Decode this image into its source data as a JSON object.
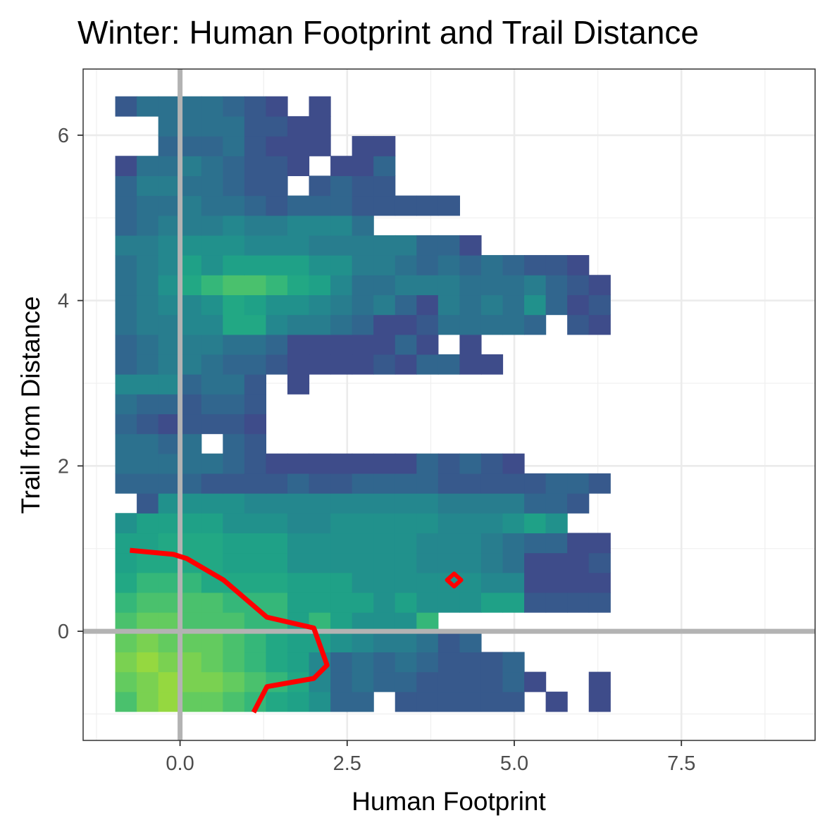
{
  "chart_data": {
    "type": "heatmap",
    "title": "Winter: Human Footprint and Trail Distance",
    "xlabel": "Human Footprint",
    "ylabel": "Trail from Distance",
    "xlim": [
      -1.45,
      9.5
    ],
    "ylim": [
      -1.32,
      6.8
    ],
    "x_ticks": [
      0.0,
      2.5,
      5.0,
      7.5
    ],
    "x_tick_labels": [
      "0.0",
      "2.5",
      "5.0",
      "7.5"
    ],
    "y_ticks": [
      -1,
      0,
      1,
      2,
      3,
      4,
      5,
      6
    ],
    "y_tick_labels": [
      "",
      "0",
      "",
      "2",
      "",
      "4",
      "",
      "6"
    ],
    "grid": true,
    "reference_lines": {
      "x": 0,
      "y": 0,
      "color": "#b3b3b3"
    },
    "bins": {
      "x0": -0.97,
      "dx": 0.322,
      "y0": -0.97,
      "dy": 0.24,
      "palette": [
        "#443a83",
        "#3e4c8a",
        "#37598c",
        "#31668e",
        "#2c718e",
        "#287d8e",
        "#24878e",
        "#21918c",
        "#1fa187",
        "#22a884",
        "#35b779",
        "#4ac16d",
        "#63cb5f",
        "#7ad151",
        "#95d840"
      ],
      "rows": [
        "nnnnnnnnnnnnnnnnnnnnnnnnnnnnnnn",
        "nnnnnnnnnnnnnnnnnnnnnnnnnnnnnnn",
        "nnnn..nn.nnnnnnnnnnnnnnnnnnnnnnn",
        "..nnnnnnnnnnnnnnnnnnnnnnnnnnnn",
        "nnnnnnnnnnnnnnnnnnnnnnnnnnnnn"
      ]
    },
    "density_grid": [
      [
        11,
        13,
        14,
        12,
        12,
        11,
        10,
        9,
        8,
        7,
        3,
        3,
        -1,
        2,
        2,
        2,
        2,
        2,
        2,
        -1,
        1,
        -1,
        1
      ],
      [
        12,
        13,
        14,
        13,
        13,
        12,
        11,
        10,
        9,
        6,
        3,
        4,
        3,
        3,
        2,
        2,
        2,
        2,
        3,
        1,
        -1,
        -1,
        1
      ],
      [
        13,
        14,
        13,
        13,
        12,
        11,
        10,
        9,
        8,
        6,
        3,
        4,
        3,
        4,
        3,
        2,
        2,
        2,
        3,
        -1,
        -1,
        -1,
        -1
      ],
      [
        12,
        13,
        12,
        12,
        12,
        11,
        10,
        9,
        8,
        8,
        7,
        6,
        5,
        5,
        4,
        2,
        3,
        -1,
        -1,
        -1,
        -1,
        -1,
        -1
      ],
      [
        11,
        12,
        12,
        11,
        11,
        11,
        10,
        10,
        8,
        10,
        8,
        7,
        7,
        7,
        10,
        -1,
        -1,
        -1,
        -1,
        -1,
        -1,
        -1,
        -1
      ],
      [
        10,
        11,
        11,
        11,
        11,
        10,
        10,
        10,
        8,
        8,
        8,
        8,
        7,
        8,
        7,
        7,
        7,
        8,
        8,
        2,
        2,
        2,
        2
      ],
      [
        9,
        10,
        10,
        10,
        9,
        9,
        9,
        9,
        8,
        8,
        8,
        7,
        7,
        7,
        7,
        7,
        7,
        6,
        6,
        1,
        1,
        1,
        1
      ],
      [
        8,
        9,
        9,
        9,
        9,
        8,
        8,
        8,
        7,
        7,
        7,
        7,
        7,
        7,
        6,
        6,
        6,
        5,
        4,
        1,
        1,
        1,
        2
      ],
      [
        8,
        8,
        9,
        9,
        9,
        8,
        8,
        8,
        7,
        7,
        7,
        7,
        7,
        7,
        6,
        6,
        6,
        5,
        4,
        3,
        3,
        1,
        1
      ],
      [
        7,
        8,
        8,
        8,
        8,
        7,
        7,
        7,
        6,
        6,
        7,
        7,
        7,
        7,
        7,
        6,
        6,
        6,
        7,
        8,
        7,
        -1,
        -1
      ],
      [
        -1,
        2,
        7,
        7,
        7,
        7,
        6,
        6,
        6,
        6,
        6,
        6,
        6,
        6,
        6,
        5,
        5,
        5,
        5,
        3,
        3,
        2,
        -1
      ],
      [
        3,
        3,
        3,
        3,
        2,
        2,
        2,
        2,
        3,
        2,
        2,
        3,
        3,
        3,
        3,
        2,
        2,
        2,
        2,
        2,
        3,
        3,
        2
      ],
      [
        4,
        4,
        4,
        4,
        4,
        3,
        2,
        1,
        1,
        1,
        1,
        1,
        1,
        1,
        3,
        2,
        3,
        2,
        1,
        -1,
        -1,
        -1,
        -1
      ],
      [
        4,
        4,
        3,
        4,
        -1,
        3,
        2,
        -1,
        -1,
        -1,
        -1,
        -1,
        -1,
        -1,
        -1,
        -1,
        -1,
        -1,
        -1,
        -1,
        -1,
        -1,
        -1
      ],
      [
        3,
        2,
        1,
        2,
        2,
        2,
        1,
        -1,
        -1,
        -1,
        -1,
        -1,
        -1,
        -1,
        -1,
        -1,
        -1,
        -1,
        -1,
        -1,
        -1,
        -1,
        -1
      ],
      [
        4,
        3,
        3,
        2,
        3,
        3,
        2,
        -1,
        -1,
        -1,
        -1,
        -1,
        -1,
        -1,
        -1,
        -1,
        -1,
        -1,
        -1,
        -1,
        -1,
        -1,
        -1
      ],
      [
        6,
        6,
        6,
        3,
        4,
        4,
        2,
        -1,
        1,
        -1,
        -1,
        -1,
        -1,
        -1,
        -1,
        -1,
        -1,
        -1,
        -1,
        -1,
        -1,
        -1,
        -1
      ],
      [
        3,
        4,
        5,
        5,
        4,
        3,
        3,
        2,
        1,
        1,
        1,
        1,
        2,
        1,
        3,
        3,
        1,
        1,
        -1,
        -1,
        -1,
        -1,
        -1
      ],
      [
        3,
        4,
        5,
        5,
        5,
        4,
        4,
        3,
        1,
        1,
        1,
        1,
        1,
        3,
        1,
        -1,
        1,
        -1,
        -1,
        -1,
        -1,
        -1,
        -1
      ],
      [
        4,
        5,
        5,
        6,
        6,
        9,
        9,
        6,
        5,
        5,
        4,
        3,
        1,
        1,
        2,
        4,
        4,
        4,
        4,
        3,
        -1,
        2,
        1
      ],
      [
        4,
        5,
        6,
        6,
        7,
        9,
        8,
        7,
        7,
        6,
        5,
        4,
        5,
        3,
        1,
        5,
        4,
        5,
        4,
        7,
        3,
        1,
        2
      ],
      [
        4,
        5,
        7,
        9,
        10,
        11,
        11,
        10,
        9,
        8,
        6,
        4,
        4,
        5,
        5,
        5,
        4,
        4,
        4,
        5,
        3,
        2,
        1
      ],
      [
        4,
        5,
        6,
        8,
        7,
        8,
        8,
        8,
        8,
        7,
        7,
        5,
        5,
        4,
        3,
        4,
        3,
        4,
        3,
        2,
        2,
        1,
        -1
      ],
      [
        5,
        5,
        6,
        7,
        7,
        7,
        6,
        6,
        6,
        5,
        5,
        5,
        5,
        5,
        3,
        3,
        1,
        -1,
        -1,
        -1,
        -1,
        -1,
        -1
      ],
      [
        3,
        4,
        5,
        5,
        5,
        6,
        5,
        5,
        6,
        6,
        6,
        4,
        -1,
        -1,
        -1,
        -1,
        -1,
        -1,
        -1,
        -1,
        -1,
        -1,
        -1
      ],
      [
        3,
        4,
        4,
        5,
        4,
        4,
        3,
        2,
        3,
        3,
        3,
        2,
        2,
        2,
        2,
        2,
        -1,
        -1,
        -1,
        -1,
        -1,
        -1,
        -1
      ],
      [
        3,
        5,
        5,
        4,
        4,
        3,
        2,
        2,
        -1,
        2,
        3,
        2,
        2,
        -1,
        -1,
        -1,
        -1,
        -1,
        -1,
        -1,
        -1,
        -1,
        -1
      ],
      [
        1,
        4,
        4,
        5,
        4,
        3,
        2,
        2,
        1,
        -1,
        1,
        1,
        3,
        -1,
        -1,
        -1,
        -1,
        -1,
        -1,
        -1,
        -1,
        -1,
        -1
      ],
      [
        -1,
        -1,
        3,
        3,
        3,
        4,
        2,
        1,
        1,
        1,
        -1,
        1,
        1,
        -1,
        -1,
        -1,
        -1,
        -1,
        -1,
        -1,
        -1,
        -1,
        -1
      ],
      [
        -1,
        -1,
        4,
        4,
        4,
        4,
        2,
        2,
        1,
        1,
        -1,
        -1,
        -1,
        -1,
        -1,
        -1,
        -1,
        -1,
        -1,
        -1,
        -1,
        -1,
        -1
      ],
      [
        2,
        4,
        4,
        4,
        4,
        3,
        2,
        1,
        -1,
        1,
        -1,
        -1,
        -1,
        -1,
        -1,
        -1,
        -1,
        -1,
        -1,
        -1,
        -1,
        -1,
        -1
      ]
    ],
    "contour": {
      "color": "#ff0000",
      "x": [
        -0.75,
        -0.1,
        0.1,
        0.65,
        1.3,
        2.0,
        2.2,
        2.0,
        1.3,
        1.1
      ],
      "y": [
        0.98,
        0.93,
        0.88,
        0.62,
        0.17,
        0.04,
        -0.41,
        -0.57,
        -0.67,
        -0.98
      ]
    },
    "contour_ring": {
      "color": "#ff0000",
      "x": 4.1,
      "y": 0.62
    }
  }
}
